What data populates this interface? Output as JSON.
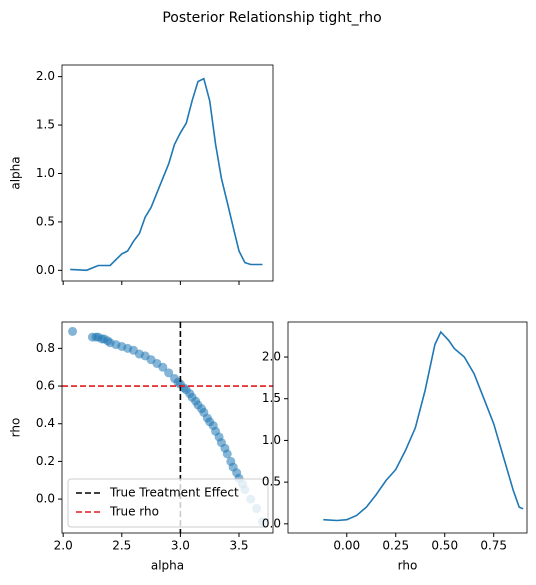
{
  "title": "Posterior Relationship tight_rho",
  "chart_data": [
    {
      "type": "line",
      "ylabel": "alpha",
      "x": [
        2.06,
        2.2,
        2.3,
        2.4,
        2.5,
        2.55,
        2.6,
        2.65,
        2.7,
        2.75,
        2.8,
        2.9,
        2.95,
        3.0,
        3.05,
        3.1,
        3.15,
        3.2,
        3.25,
        3.3,
        3.35,
        3.4,
        3.45,
        3.5,
        3.55,
        3.6,
        3.7
      ],
      "series": [
        {
          "color": "#1f77b4",
          "values": [
            0.01,
            0.0,
            0.05,
            0.05,
            0.17,
            0.2,
            0.3,
            0.38,
            0.55,
            0.65,
            0.8,
            1.1,
            1.3,
            1.42,
            1.52,
            1.75,
            1.95,
            1.98,
            1.75,
            1.3,
            0.95,
            0.7,
            0.45,
            0.2,
            0.08,
            0.06,
            0.06
          ]
        }
      ],
      "xlim": [
        1.99,
        3.79
      ],
      "ylim": [
        -0.11,
        2.12
      ],
      "xticks": [
        2,
        2.5,
        3,
        3.5
      ],
      "xticklabels": false,
      "yticks": [
        {
          "value": 0,
          "label": "0.0"
        },
        0.5,
        {
          "value": 1,
          "label": "1.0"
        },
        1.5,
        {
          "value": 2,
          "label": "2.0"
        }
      ]
    },
    {
      "type": "scatter",
      "xlabel": "alpha",
      "ylabel": "rho",
      "x": [
        2.08,
        2.25,
        2.28,
        2.3,
        2.33,
        2.35,
        2.38,
        2.4,
        2.45,
        2.5,
        2.55,
        2.6,
        2.65,
        2.7,
        2.75,
        2.8,
        2.85,
        2.9,
        2.95,
        2.98,
        3.0,
        3.03,
        3.05,
        3.08,
        3.1,
        3.13,
        3.15,
        3.18,
        3.2,
        3.23,
        3.25,
        3.28,
        3.3,
        3.33,
        3.35,
        3.38,
        3.4,
        3.43,
        3.45,
        3.48,
        3.5,
        3.53,
        3.55,
        3.6,
        3.65,
        3.7
      ],
      "series": [
        {
          "color": "#1f77b4",
          "values": [
            0.89,
            0.86,
            0.86,
            0.86,
            0.85,
            0.85,
            0.84,
            0.83,
            0.82,
            0.81,
            0.8,
            0.79,
            0.77,
            0.76,
            0.74,
            0.72,
            0.7,
            0.67,
            0.64,
            0.62,
            0.61,
            0.59,
            0.58,
            0.56,
            0.54,
            0.52,
            0.5,
            0.48,
            0.46,
            0.43,
            0.41,
            0.39,
            0.36,
            0.33,
            0.3,
            0.27,
            0.24,
            0.2,
            0.17,
            0.14,
            0.11,
            0.08,
            0.05,
            0.0,
            -0.05,
            -0.12
          ]
        }
      ],
      "lines": [
        {
          "name": "True Treatment Effect",
          "axis": "x",
          "value": 3,
          "color": "#000000"
        },
        {
          "name": "True rho",
          "axis": "y",
          "value": 0.6,
          "color": "#e41a1c"
        }
      ],
      "legend": "lower left",
      "xlim": [
        1.99,
        3.79
      ],
      "ylim": [
        -0.18,
        0.94
      ],
      "xticks": [
        {
          "value": 2,
          "label": "2.0"
        },
        2.5,
        {
          "value": 3,
          "label": "3.0"
        },
        3.5
      ],
      "yticks": [
        {
          "value": 0,
          "label": "0.0"
        },
        0.2,
        0.4,
        0.6,
        0.8
      ]
    },
    {
      "type": "line",
      "xlabel": "rho",
      "x": [
        -0.12,
        -0.05,
        0.0,
        0.05,
        0.1,
        0.15,
        0.2,
        0.25,
        0.3,
        0.35,
        0.4,
        0.45,
        0.48,
        0.52,
        0.55,
        0.6,
        0.65,
        0.7,
        0.75,
        0.8,
        0.85,
        0.88,
        0.9
      ],
      "series": [
        {
          "color": "#1f77b4",
          "values": [
            0.05,
            0.04,
            0.05,
            0.1,
            0.2,
            0.35,
            0.52,
            0.65,
            0.88,
            1.15,
            1.6,
            2.15,
            2.3,
            2.2,
            2.1,
            2.0,
            1.8,
            1.5,
            1.2,
            0.8,
            0.4,
            0.2,
            0.18
          ]
        }
      ],
      "xlim": [
        -0.3,
        0.92
      ],
      "ylim": [
        -0.11,
        2.42
      ],
      "xticks": [
        {
          "value": 0,
          "label": "0.00"
        },
        0.25,
        {
          "value": 0.5,
          "label": "0.50"
        },
        0.75
      ],
      "yticks": [
        {
          "value": 0,
          "label": "0.0"
        },
        0.5,
        {
          "value": 1,
          "label": "1.0"
        },
        1.5,
        {
          "value": 2,
          "label": "2.0"
        }
      ]
    }
  ]
}
